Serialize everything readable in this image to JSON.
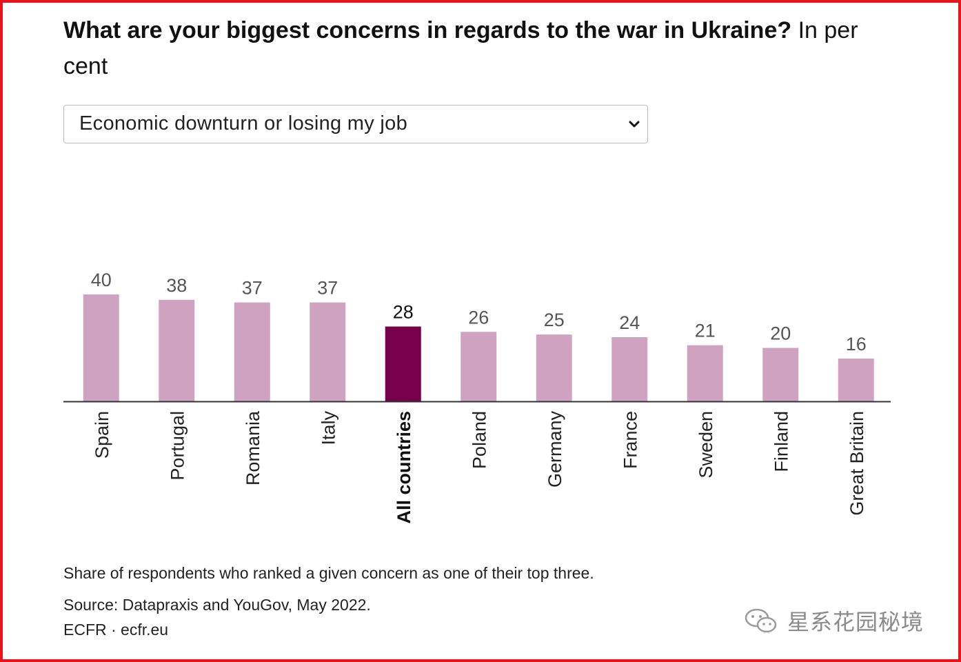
{
  "title": {
    "bold": "What are your biggest concerns in regards to the war in Ukraine?",
    "rest": "In per cent"
  },
  "dropdown": {
    "selected": "Economic downturn or losing my job"
  },
  "chart_data": {
    "type": "bar",
    "title": "What are your biggest concerns in regards to the war in Ukraine? In per cent",
    "categories": [
      "Spain",
      "Portugal",
      "Romania",
      "Italy",
      "All countries",
      "Poland",
      "Germany",
      "France",
      "Sweden",
      "Finland",
      "Great Britain"
    ],
    "values": [
      40,
      38,
      37,
      37,
      28,
      26,
      25,
      24,
      21,
      20,
      16
    ],
    "highlight": "All countries",
    "xlabel": "",
    "ylabel": "",
    "ylim": [
      0,
      40
    ],
    "colors": {
      "bar": "#cfa2bf",
      "highlight": "#78004a",
      "axis": "#333333",
      "label": "#555555",
      "highlight_label": "#111111"
    }
  },
  "footnote": "Share of respondents who ranked a given concern as one of their top three.",
  "source": "Source: Datapraxis and YouGov, May 2022.",
  "credit": "ECFR · ecfr.eu",
  "watermark": {
    "text": "星系花园秘境",
    "icon": "wechat-icon"
  }
}
